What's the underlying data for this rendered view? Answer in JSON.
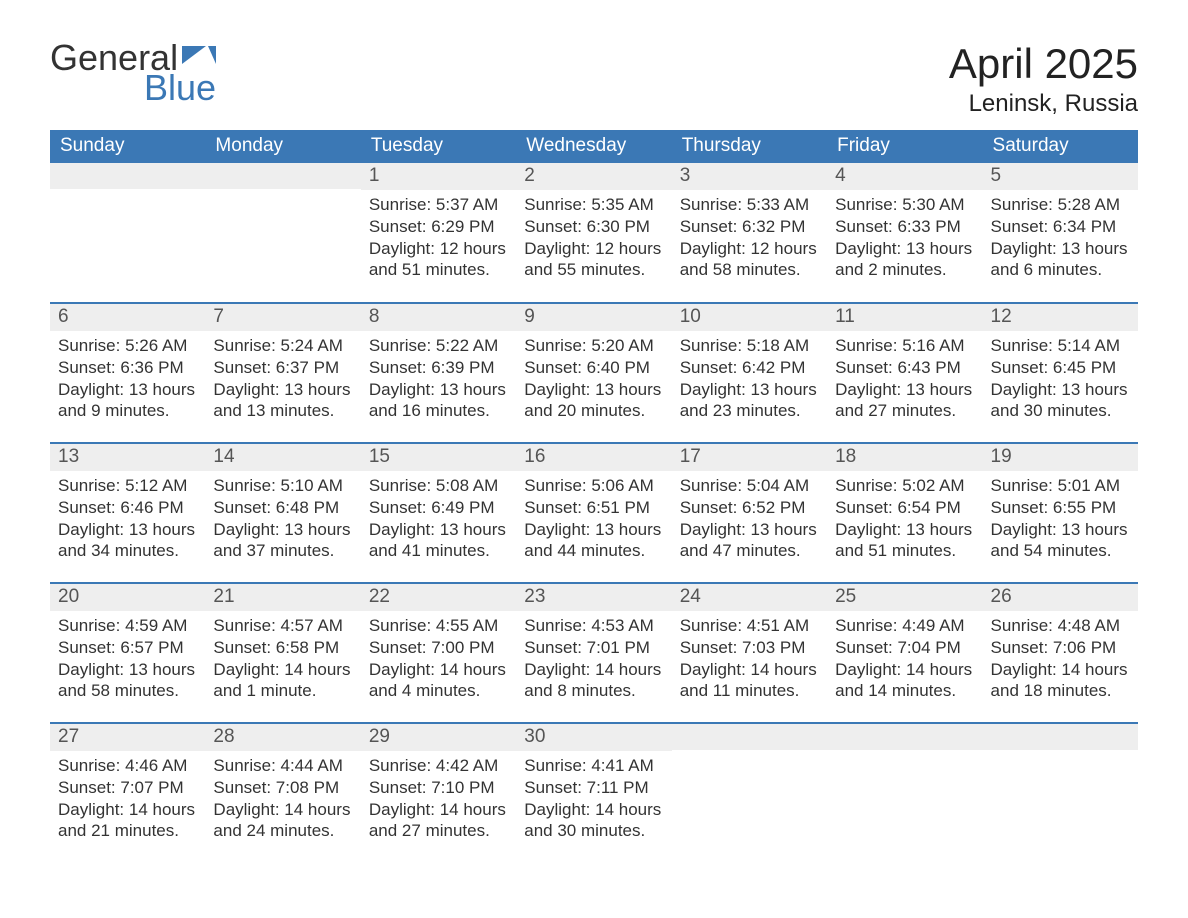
{
  "brand": {
    "word1": "General",
    "word2": "Blue",
    "accent_color": "#3b78b5"
  },
  "title": "April 2025",
  "location": "Leninsk, Russia",
  "colors": {
    "header_bg": "#3b78b5",
    "header_text": "#ffffff",
    "daynum_bg": "#eeeeee",
    "daynum_text": "#555555",
    "body_text": "#333333",
    "row_divider": "#3b78b5",
    "page_bg": "#ffffff"
  },
  "typography": {
    "title_fontsize": 42,
    "location_fontsize": 24,
    "weekday_fontsize": 19,
    "daynum_fontsize": 19,
    "body_fontsize": 17,
    "font_family": "Segoe UI"
  },
  "weekdays": [
    "Sunday",
    "Monday",
    "Tuesday",
    "Wednesday",
    "Thursday",
    "Friday",
    "Saturday"
  ],
  "weeks": [
    [
      {
        "day": "",
        "sunrise": "",
        "sunset": "",
        "daylight": ""
      },
      {
        "day": "",
        "sunrise": "",
        "sunset": "",
        "daylight": ""
      },
      {
        "day": "1",
        "sunrise": "Sunrise: 5:37 AM",
        "sunset": "Sunset: 6:29 PM",
        "daylight": "Daylight: 12 hours and 51 minutes."
      },
      {
        "day": "2",
        "sunrise": "Sunrise: 5:35 AM",
        "sunset": "Sunset: 6:30 PM",
        "daylight": "Daylight: 12 hours and 55 minutes."
      },
      {
        "day": "3",
        "sunrise": "Sunrise: 5:33 AM",
        "sunset": "Sunset: 6:32 PM",
        "daylight": "Daylight: 12 hours and 58 minutes."
      },
      {
        "day": "4",
        "sunrise": "Sunrise: 5:30 AM",
        "sunset": "Sunset: 6:33 PM",
        "daylight": "Daylight: 13 hours and 2 minutes."
      },
      {
        "day": "5",
        "sunrise": "Sunrise: 5:28 AM",
        "sunset": "Sunset: 6:34 PM",
        "daylight": "Daylight: 13 hours and 6 minutes."
      }
    ],
    [
      {
        "day": "6",
        "sunrise": "Sunrise: 5:26 AM",
        "sunset": "Sunset: 6:36 PM",
        "daylight": "Daylight: 13 hours and 9 minutes."
      },
      {
        "day": "7",
        "sunrise": "Sunrise: 5:24 AM",
        "sunset": "Sunset: 6:37 PM",
        "daylight": "Daylight: 13 hours and 13 minutes."
      },
      {
        "day": "8",
        "sunrise": "Sunrise: 5:22 AM",
        "sunset": "Sunset: 6:39 PM",
        "daylight": "Daylight: 13 hours and 16 minutes."
      },
      {
        "day": "9",
        "sunrise": "Sunrise: 5:20 AM",
        "sunset": "Sunset: 6:40 PM",
        "daylight": "Daylight: 13 hours and 20 minutes."
      },
      {
        "day": "10",
        "sunrise": "Sunrise: 5:18 AM",
        "sunset": "Sunset: 6:42 PM",
        "daylight": "Daylight: 13 hours and 23 minutes."
      },
      {
        "day": "11",
        "sunrise": "Sunrise: 5:16 AM",
        "sunset": "Sunset: 6:43 PM",
        "daylight": "Daylight: 13 hours and 27 minutes."
      },
      {
        "day": "12",
        "sunrise": "Sunrise: 5:14 AM",
        "sunset": "Sunset: 6:45 PM",
        "daylight": "Daylight: 13 hours and 30 minutes."
      }
    ],
    [
      {
        "day": "13",
        "sunrise": "Sunrise: 5:12 AM",
        "sunset": "Sunset: 6:46 PM",
        "daylight": "Daylight: 13 hours and 34 minutes."
      },
      {
        "day": "14",
        "sunrise": "Sunrise: 5:10 AM",
        "sunset": "Sunset: 6:48 PM",
        "daylight": "Daylight: 13 hours and 37 minutes."
      },
      {
        "day": "15",
        "sunrise": "Sunrise: 5:08 AM",
        "sunset": "Sunset: 6:49 PM",
        "daylight": "Daylight: 13 hours and 41 minutes."
      },
      {
        "day": "16",
        "sunrise": "Sunrise: 5:06 AM",
        "sunset": "Sunset: 6:51 PM",
        "daylight": "Daylight: 13 hours and 44 minutes."
      },
      {
        "day": "17",
        "sunrise": "Sunrise: 5:04 AM",
        "sunset": "Sunset: 6:52 PM",
        "daylight": "Daylight: 13 hours and 47 minutes."
      },
      {
        "day": "18",
        "sunrise": "Sunrise: 5:02 AM",
        "sunset": "Sunset: 6:54 PM",
        "daylight": "Daylight: 13 hours and 51 minutes."
      },
      {
        "day": "19",
        "sunrise": "Sunrise: 5:01 AM",
        "sunset": "Sunset: 6:55 PM",
        "daylight": "Daylight: 13 hours and 54 minutes."
      }
    ],
    [
      {
        "day": "20",
        "sunrise": "Sunrise: 4:59 AM",
        "sunset": "Sunset: 6:57 PM",
        "daylight": "Daylight: 13 hours and 58 minutes."
      },
      {
        "day": "21",
        "sunrise": "Sunrise: 4:57 AM",
        "sunset": "Sunset: 6:58 PM",
        "daylight": "Daylight: 14 hours and 1 minute."
      },
      {
        "day": "22",
        "sunrise": "Sunrise: 4:55 AM",
        "sunset": "Sunset: 7:00 PM",
        "daylight": "Daylight: 14 hours and 4 minutes."
      },
      {
        "day": "23",
        "sunrise": "Sunrise: 4:53 AM",
        "sunset": "Sunset: 7:01 PM",
        "daylight": "Daylight: 14 hours and 8 minutes."
      },
      {
        "day": "24",
        "sunrise": "Sunrise: 4:51 AM",
        "sunset": "Sunset: 7:03 PM",
        "daylight": "Daylight: 14 hours and 11 minutes."
      },
      {
        "day": "25",
        "sunrise": "Sunrise: 4:49 AM",
        "sunset": "Sunset: 7:04 PM",
        "daylight": "Daylight: 14 hours and 14 minutes."
      },
      {
        "day": "26",
        "sunrise": "Sunrise: 4:48 AM",
        "sunset": "Sunset: 7:06 PM",
        "daylight": "Daylight: 14 hours and 18 minutes."
      }
    ],
    [
      {
        "day": "27",
        "sunrise": "Sunrise: 4:46 AM",
        "sunset": "Sunset: 7:07 PM",
        "daylight": "Daylight: 14 hours and 21 minutes."
      },
      {
        "day": "28",
        "sunrise": "Sunrise: 4:44 AM",
        "sunset": "Sunset: 7:08 PM",
        "daylight": "Daylight: 14 hours and 24 minutes."
      },
      {
        "day": "29",
        "sunrise": "Sunrise: 4:42 AM",
        "sunset": "Sunset: 7:10 PM",
        "daylight": "Daylight: 14 hours and 27 minutes."
      },
      {
        "day": "30",
        "sunrise": "Sunrise: 4:41 AM",
        "sunset": "Sunset: 7:11 PM",
        "daylight": "Daylight: 14 hours and 30 minutes."
      },
      {
        "day": "",
        "sunrise": "",
        "sunset": "",
        "daylight": ""
      },
      {
        "day": "",
        "sunrise": "",
        "sunset": "",
        "daylight": ""
      },
      {
        "day": "",
        "sunrise": "",
        "sunset": "",
        "daylight": ""
      }
    ]
  ]
}
